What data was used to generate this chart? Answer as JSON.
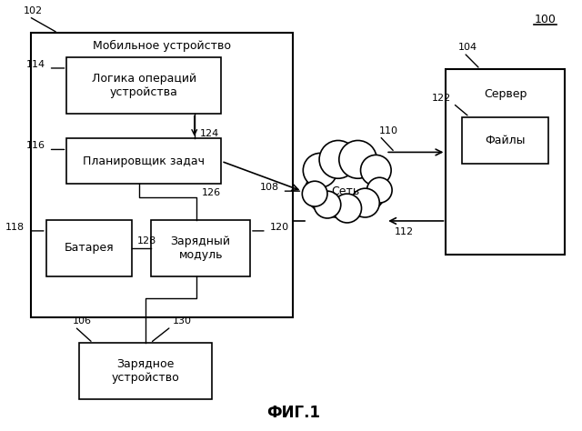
{
  "fig_label": "ФИГ.1",
  "ref_100": "100",
  "ref_102": "102",
  "ref_104": "104",
  "ref_106": "106",
  "ref_108": "108",
  "ref_110": "110",
  "ref_112": "112",
  "ref_114": "114",
  "ref_116": "116",
  "ref_118": "118",
  "ref_120": "120",
  "ref_122": "122",
  "ref_124": "124",
  "ref_126": "126",
  "ref_128": "128",
  "ref_130": "130",
  "label_mobile": "Мобильное устройство",
  "label_logic": "Логика операций\nустройства",
  "label_scheduler": "Планировщик задач",
  "label_battery": "Батарея",
  "label_charger_module": "Зарядный\nмодуль",
  "label_charger": "Зарядное\nустройство",
  "label_server": "Сервер",
  "label_files": "Файлы",
  "label_network": "Сеть",
  "bg_color": "#ffffff",
  "line_color": "#000000",
  "font_size": 9,
  "font_size_small": 8,
  "font_size_label": 12
}
